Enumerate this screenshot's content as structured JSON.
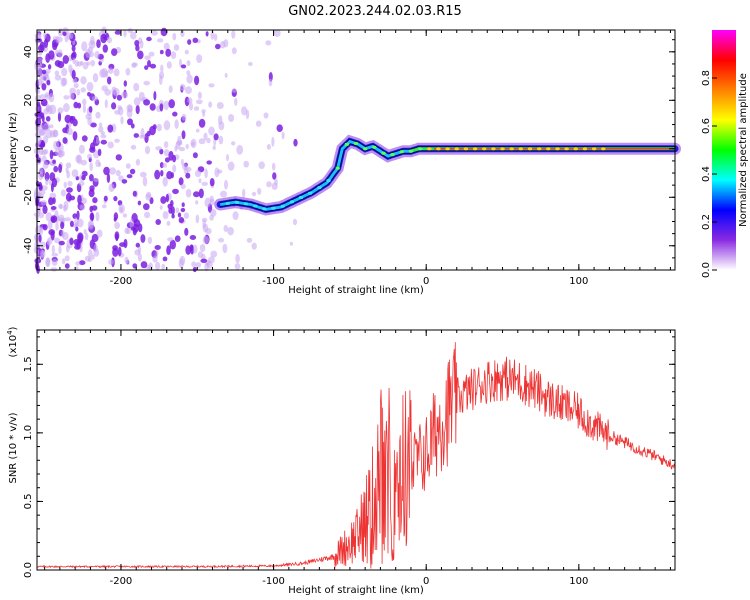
{
  "title": "GN02.2023.244.02.03.R15",
  "chart_data": [
    {
      "type": "heatmap",
      "name": "spectrogram",
      "xlabel": "Height of straight line (km)",
      "ylabel": "Frequency (Hz)",
      "xlim": [
        -255,
        163
      ],
      "ylim": [
        -50,
        49
      ],
      "x_ticks": [
        -200,
        -100,
        0,
        100
      ],
      "x_tick_labels": [
        "-200",
        "-100",
        "0",
        "100"
      ],
      "y_ticks": [
        -40,
        -20,
        0,
        20,
        40
      ],
      "y_tick_labels": [
        "-40",
        "-20",
        "0",
        "20",
        "40"
      ],
      "colorbar": {
        "label": "Normalized spectral amplitude",
        "range": [
          0,
          1
        ],
        "ticks": [
          0.0,
          0.2,
          0.4,
          0.6,
          0.8
        ],
        "tick_labels": [
          "0.0",
          "0.2",
          "0.4",
          "0.6",
          "0.8"
        ],
        "colors": [
          "#ffffff",
          "#8a2be2",
          "#0000ff",
          "#00ffff",
          "#00ff00",
          "#ffff00",
          "#ff8000",
          "#ff0000",
          "#ff00ff"
        ]
      },
      "ridge": {
        "x": [
          -135,
          -125,
          -115,
          -105,
          -95,
          -85,
          -75,
          -65,
          -58,
          -55,
          -50,
          -45,
          -40,
          -35,
          -30,
          -25,
          -20,
          -15,
          -10,
          -5,
          0,
          20,
          40,
          60,
          80,
          100,
          120,
          140,
          163
        ],
        "y": [
          -23,
          -22,
          -23,
          -25,
          -24,
          -21,
          -18,
          -14,
          -8,
          0,
          3,
          2,
          0,
          1,
          -1,
          -3,
          -2,
          -1,
          -1,
          0,
          0,
          0,
          0,
          0,
          0,
          0,
          0,
          0,
          0
        ]
      },
      "noise_extent_x": [
        -255,
        -85
      ]
    },
    {
      "type": "line",
      "name": "snr",
      "xlabel": "Height of straight line (km)",
      "ylabel": "SNR (10 * v/v)",
      "multiplier_label": "(x10",
      "multiplier_exp": "4",
      "multiplier_close": ")",
      "color": "#ee3333",
      "xlim": [
        -255,
        163
      ],
      "ylim": [
        0,
        17500
      ],
      "x_ticks": [
        -200,
        -100,
        0,
        100
      ],
      "x_tick_labels": [
        "-200",
        "-100",
        "0",
        "100"
      ],
      "y_ticks": [
        0,
        5000,
        10000,
        15000
      ],
      "y_tick_labels": [
        "0.0",
        "0.5",
        "1.0",
        "1.5"
      ],
      "envelope": {
        "x": [
          -255,
          -150,
          -100,
          -80,
          -60,
          -45,
          -35,
          -30,
          -25,
          -20,
          -10,
          0,
          10,
          20,
          30,
          40,
          50,
          60,
          70,
          80,
          90,
          100,
          110,
          120,
          140,
          163
        ],
        "y": [
          250,
          250,
          300,
          500,
          1000,
          2500,
          5000,
          7000,
          6500,
          7000,
          7500,
          8500,
          11000,
          12500,
          13200,
          13800,
          14000,
          13800,
          13300,
          12500,
          12000,
          11500,
          10500,
          9800,
          8800,
          7600
        ]
      }
    }
  ]
}
